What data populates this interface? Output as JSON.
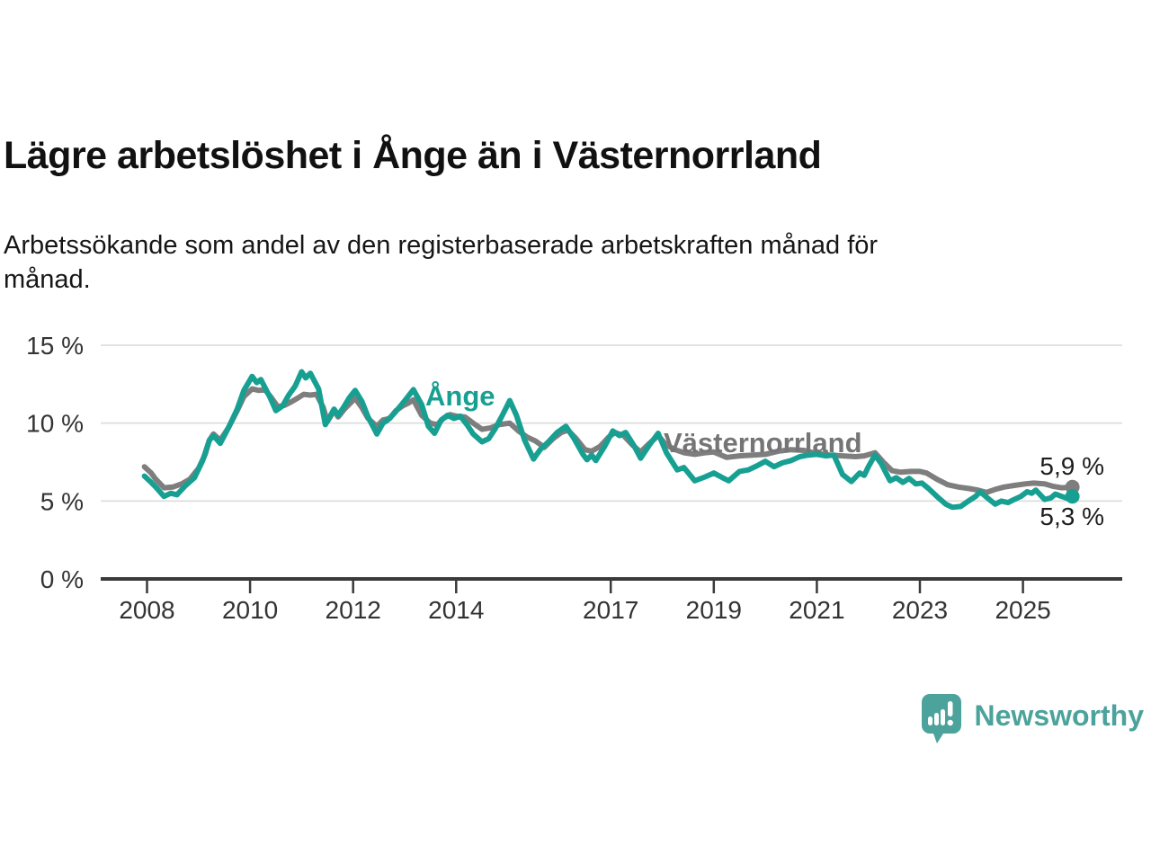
{
  "header": {
    "title": "Lägre arbetslöshet i Ånge än i Västernorrland",
    "subtitle": "Arbetssökande som andel av den registerbaserade arbetskraften månad för månad.",
    "subtitle_lines": [
      "Arbetssökande som andel av den registerbaserade arbetskraften månad för",
      "månad."
    ]
  },
  "chart_data": {
    "type": "line",
    "title": "Lägre arbetslöshet i Ånge än i Västernorrland",
    "unit": "%",
    "grid": "horizontal",
    "legend_position": "inline-annotations",
    "xlim": [
      2007.9,
      2026.1
    ],
    "ylim": [
      0,
      15.5
    ],
    "y_ticks": [
      {
        "v": 0,
        "label": "0 %"
      },
      {
        "v": 5,
        "label": "5 %"
      },
      {
        "v": 10,
        "label": "10 %"
      },
      {
        "v": 15,
        "label": "15 %"
      }
    ],
    "x_ticks": [
      {
        "t": 2008,
        "label": "2008"
      },
      {
        "t": 2010,
        "label": "2010"
      },
      {
        "t": 2012,
        "label": "2012"
      },
      {
        "t": 2014,
        "label": "2014"
      },
      {
        "t": 2017,
        "label": "2017"
      },
      {
        "t": 2019,
        "label": "2019"
      },
      {
        "t": 2021,
        "label": "2021"
      },
      {
        "t": 2023,
        "label": "2023"
      },
      {
        "t": 2025,
        "label": "2025"
      }
    ],
    "series": [
      {
        "name": "Västernorrland",
        "inline_label": "Västernorrland",
        "color": "#7e7e7e",
        "end_label": "5,9 %",
        "end_value": 5.9,
        "points": [
          [
            2007.95,
            7.2
          ],
          [
            2008.08,
            6.8
          ],
          [
            2008.17,
            6.4
          ],
          [
            2008.33,
            5.85
          ],
          [
            2008.5,
            5.9
          ],
          [
            2008.67,
            6.1
          ],
          [
            2008.83,
            6.4
          ],
          [
            2009.0,
            7.1
          ],
          [
            2009.13,
            8.0
          ],
          [
            2009.21,
            8.9
          ],
          [
            2009.29,
            9.3
          ],
          [
            2009.42,
            8.9
          ],
          [
            2009.58,
            9.7
          ],
          [
            2009.75,
            10.8
          ],
          [
            2009.88,
            11.7
          ],
          [
            2010.04,
            12.2
          ],
          [
            2010.17,
            12.1
          ],
          [
            2010.29,
            12.15
          ],
          [
            2010.42,
            11.6
          ],
          [
            2010.54,
            11.05
          ],
          [
            2010.67,
            11.15
          ],
          [
            2010.79,
            11.35
          ],
          [
            2010.92,
            11.6
          ],
          [
            2011.04,
            11.85
          ],
          [
            2011.17,
            11.8
          ],
          [
            2011.29,
            11.85
          ],
          [
            2011.42,
            11.0
          ],
          [
            2011.5,
            10.1
          ],
          [
            2011.63,
            10.8
          ],
          [
            2011.71,
            10.4
          ],
          [
            2011.83,
            10.9
          ],
          [
            2011.92,
            11.2
          ],
          [
            2012.04,
            11.6
          ],
          [
            2012.17,
            11.0
          ],
          [
            2012.29,
            10.3
          ],
          [
            2012.46,
            9.8
          ],
          [
            2012.58,
            10.2
          ],
          [
            2012.71,
            10.3
          ],
          [
            2012.83,
            10.8
          ],
          [
            2012.96,
            11.1
          ],
          [
            2013.08,
            11.3
          ],
          [
            2013.17,
            11.5
          ],
          [
            2013.33,
            10.5
          ],
          [
            2013.5,
            10.0
          ],
          [
            2013.63,
            9.9
          ],
          [
            2013.75,
            10.3
          ],
          [
            2013.88,
            10.55
          ],
          [
            2014.0,
            10.45
          ],
          [
            2014.17,
            10.4
          ],
          [
            2014.33,
            10.0
          ],
          [
            2014.5,
            9.6
          ],
          [
            2014.67,
            9.7
          ],
          [
            2014.83,
            9.9
          ],
          [
            2015.04,
            10.0
          ],
          [
            2015.21,
            9.5
          ],
          [
            2015.38,
            9.1
          ],
          [
            2015.54,
            8.85
          ],
          [
            2015.71,
            8.45
          ],
          [
            2015.88,
            9.0
          ],
          [
            2016.04,
            9.4
          ],
          [
            2016.17,
            9.55
          ],
          [
            2016.33,
            9.0
          ],
          [
            2016.5,
            8.3
          ],
          [
            2016.63,
            8.2
          ],
          [
            2016.79,
            8.5
          ],
          [
            2016.96,
            9.1
          ],
          [
            2017.08,
            9.4
          ],
          [
            2017.25,
            9.2
          ],
          [
            2017.42,
            8.6
          ],
          [
            2017.58,
            8.15
          ],
          [
            2017.75,
            8.7
          ],
          [
            2017.92,
            9.2
          ],
          [
            2018.08,
            8.6
          ],
          [
            2018.25,
            8.3
          ],
          [
            2018.42,
            8.1
          ],
          [
            2018.63,
            8.0
          ],
          [
            2018.83,
            8.1
          ],
          [
            2019.0,
            8.15
          ],
          [
            2019.25,
            7.8
          ],
          [
            2019.5,
            7.9
          ],
          [
            2019.75,
            7.95
          ],
          [
            2020.0,
            8.0
          ],
          [
            2020.25,
            8.2
          ],
          [
            2020.5,
            8.3
          ],
          [
            2020.75,
            8.25
          ],
          [
            2021.0,
            8.05
          ],
          [
            2021.25,
            7.95
          ],
          [
            2021.5,
            7.9
          ],
          [
            2021.75,
            7.85
          ],
          [
            2021.92,
            7.9
          ],
          [
            2022.13,
            8.1
          ],
          [
            2022.29,
            7.5
          ],
          [
            2022.46,
            6.95
          ],
          [
            2022.63,
            6.85
          ],
          [
            2022.83,
            6.9
          ],
          [
            2023.0,
            6.9
          ],
          [
            2023.13,
            6.8
          ],
          [
            2023.33,
            6.4
          ],
          [
            2023.54,
            6.05
          ],
          [
            2023.75,
            5.9
          ],
          [
            2023.96,
            5.8
          ],
          [
            2024.13,
            5.7
          ],
          [
            2024.29,
            5.55
          ],
          [
            2024.46,
            5.75
          ],
          [
            2024.63,
            5.9
          ],
          [
            2024.83,
            6.0
          ],
          [
            2025.04,
            6.1
          ],
          [
            2025.21,
            6.15
          ],
          [
            2025.42,
            6.1
          ],
          [
            2025.58,
            5.95
          ],
          [
            2025.75,
            5.85
          ],
          [
            2025.96,
            5.9
          ]
        ]
      },
      {
        "name": "Ånge",
        "inline_label": "Ånge",
        "color": "#17a092",
        "end_label": "5,3 %",
        "end_value": 5.3,
        "points": [
          [
            2007.95,
            6.6
          ],
          [
            2008.08,
            6.2
          ],
          [
            2008.17,
            5.9
          ],
          [
            2008.33,
            5.3
          ],
          [
            2008.46,
            5.5
          ],
          [
            2008.58,
            5.4
          ],
          [
            2008.75,
            6.0
          ],
          [
            2008.92,
            6.5
          ],
          [
            2009.08,
            7.6
          ],
          [
            2009.21,
            8.9
          ],
          [
            2009.29,
            9.2
          ],
          [
            2009.42,
            8.7
          ],
          [
            2009.58,
            9.7
          ],
          [
            2009.75,
            10.9
          ],
          [
            2009.88,
            12.1
          ],
          [
            2010.04,
            13.0
          ],
          [
            2010.13,
            12.6
          ],
          [
            2010.21,
            12.8
          ],
          [
            2010.38,
            11.7
          ],
          [
            2010.5,
            10.8
          ],
          [
            2010.63,
            11.1
          ],
          [
            2010.75,
            11.8
          ],
          [
            2010.88,
            12.4
          ],
          [
            2011.0,
            13.3
          ],
          [
            2011.08,
            12.9
          ],
          [
            2011.17,
            13.2
          ],
          [
            2011.33,
            12.2
          ],
          [
            2011.46,
            9.9
          ],
          [
            2011.63,
            10.9
          ],
          [
            2011.71,
            10.5
          ],
          [
            2011.83,
            11.1
          ],
          [
            2011.92,
            11.6
          ],
          [
            2012.04,
            12.1
          ],
          [
            2012.17,
            11.4
          ],
          [
            2012.29,
            10.4
          ],
          [
            2012.46,
            9.3
          ],
          [
            2012.58,
            10.0
          ],
          [
            2012.67,
            10.2
          ],
          [
            2012.79,
            10.6
          ],
          [
            2012.92,
            11.1
          ],
          [
            2013.04,
            11.6
          ],
          [
            2013.17,
            12.15
          ],
          [
            2013.33,
            11.2
          ],
          [
            2013.46,
            9.8
          ],
          [
            2013.58,
            9.35
          ],
          [
            2013.71,
            10.2
          ],
          [
            2013.83,
            10.5
          ],
          [
            2013.96,
            10.3
          ],
          [
            2014.08,
            10.45
          ],
          [
            2014.21,
            9.9
          ],
          [
            2014.33,
            9.3
          ],
          [
            2014.5,
            8.8
          ],
          [
            2014.63,
            9.0
          ],
          [
            2014.75,
            9.6
          ],
          [
            2014.88,
            10.4
          ],
          [
            2015.04,
            11.45
          ],
          [
            2015.17,
            10.5
          ],
          [
            2015.33,
            8.9
          ],
          [
            2015.5,
            7.7
          ],
          [
            2015.63,
            8.3
          ],
          [
            2015.79,
            8.8
          ],
          [
            2015.96,
            9.4
          ],
          [
            2016.13,
            9.8
          ],
          [
            2016.29,
            9.0
          ],
          [
            2016.46,
            8.0
          ],
          [
            2016.54,
            7.65
          ],
          [
            2016.63,
            7.95
          ],
          [
            2016.71,
            7.6
          ],
          [
            2016.88,
            8.5
          ],
          [
            2017.04,
            9.5
          ],
          [
            2017.17,
            9.2
          ],
          [
            2017.29,
            9.4
          ],
          [
            2017.46,
            8.5
          ],
          [
            2017.58,
            7.75
          ],
          [
            2017.75,
            8.6
          ],
          [
            2017.92,
            9.35
          ],
          [
            2018.08,
            8.1
          ],
          [
            2018.29,
            7.0
          ],
          [
            2018.42,
            7.15
          ],
          [
            2018.63,
            6.3
          ],
          [
            2018.83,
            6.55
          ],
          [
            2019.0,
            6.8
          ],
          [
            2019.17,
            6.5
          ],
          [
            2019.29,
            6.3
          ],
          [
            2019.5,
            6.9
          ],
          [
            2019.67,
            7.0
          ],
          [
            2019.83,
            7.25
          ],
          [
            2020.0,
            7.55
          ],
          [
            2020.17,
            7.2
          ],
          [
            2020.33,
            7.45
          ],
          [
            2020.5,
            7.6
          ],
          [
            2020.67,
            7.85
          ],
          [
            2020.83,
            7.95
          ],
          [
            2021.0,
            8.0
          ],
          [
            2021.17,
            7.9
          ],
          [
            2021.33,
            7.95
          ],
          [
            2021.5,
            6.7
          ],
          [
            2021.67,
            6.25
          ],
          [
            2021.83,
            6.8
          ],
          [
            2021.92,
            6.65
          ],
          [
            2022.0,
            7.2
          ],
          [
            2022.13,
            7.95
          ],
          [
            2022.25,
            7.4
          ],
          [
            2022.42,
            6.3
          ],
          [
            2022.54,
            6.5
          ],
          [
            2022.67,
            6.2
          ],
          [
            2022.79,
            6.45
          ],
          [
            2022.92,
            6.1
          ],
          [
            2023.04,
            6.15
          ],
          [
            2023.17,
            5.8
          ],
          [
            2023.33,
            5.3
          ],
          [
            2023.5,
            4.8
          ],
          [
            2023.63,
            4.6
          ],
          [
            2023.79,
            4.65
          ],
          [
            2023.92,
            4.95
          ],
          [
            2024.08,
            5.3
          ],
          [
            2024.17,
            5.6
          ],
          [
            2024.33,
            5.15
          ],
          [
            2024.46,
            4.8
          ],
          [
            2024.58,
            5.0
          ],
          [
            2024.71,
            4.9
          ],
          [
            2024.83,
            5.1
          ],
          [
            2024.96,
            5.3
          ],
          [
            2025.08,
            5.6
          ],
          [
            2025.17,
            5.5
          ],
          [
            2025.25,
            5.7
          ],
          [
            2025.42,
            5.1
          ],
          [
            2025.54,
            5.2
          ],
          [
            2025.63,
            5.45
          ],
          [
            2025.75,
            5.3
          ],
          [
            2025.88,
            5.15
          ],
          [
            2025.96,
            5.3
          ]
        ]
      }
    ]
  },
  "footer": {
    "brand": "Newsworthy"
  },
  "colors": {
    "accent_teal": "#17a092",
    "series_gray": "#7e7e7e",
    "label_gray": "#757575",
    "logo_teal": "#4ba39b",
    "grid": "#dcdcdc",
    "axis": "#3a3a3a",
    "text": "#111111"
  }
}
